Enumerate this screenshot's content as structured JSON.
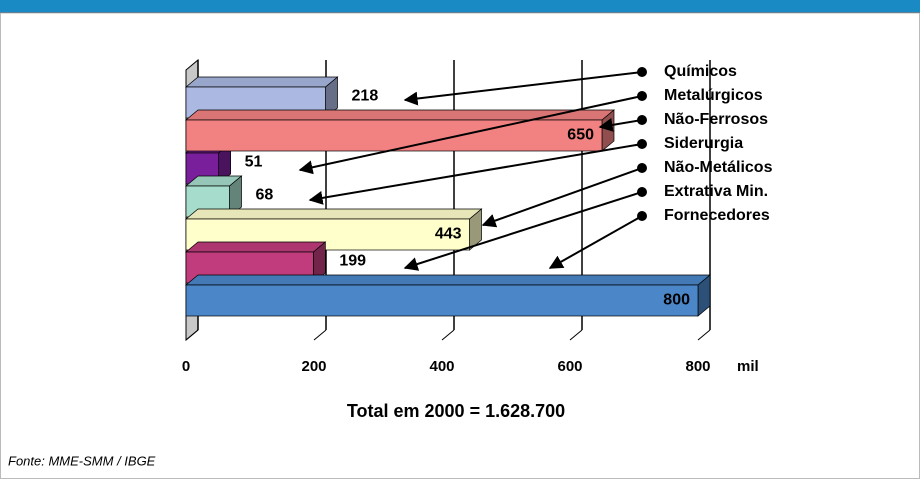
{
  "chart_data": {
    "type": "bar3d",
    "title": "Total em 2000 = 1.628.700",
    "source": "Fonte: MME-SMM / IBGE",
    "x_unit": "mil",
    "categories": [
      "Químicos",
      "Metalúrgicos",
      "Não-Ferrosos",
      "Siderurgia",
      "Não-Metálicos",
      "Extrativa Min.",
      "Fornecedores"
    ],
    "values": [
      218,
      51,
      650,
      68,
      443,
      199,
      800
    ],
    "colors": [
      "#aab8e2",
      "#7a1f9c",
      "#f28282",
      "#a6dccb",
      "#ffffcc",
      "#c03c7c",
      "#4a86c8"
    ],
    "xlim": [
      0,
      800
    ],
    "xticks": [
      0,
      200,
      400,
      600,
      800
    ],
    "grid": true
  }
}
